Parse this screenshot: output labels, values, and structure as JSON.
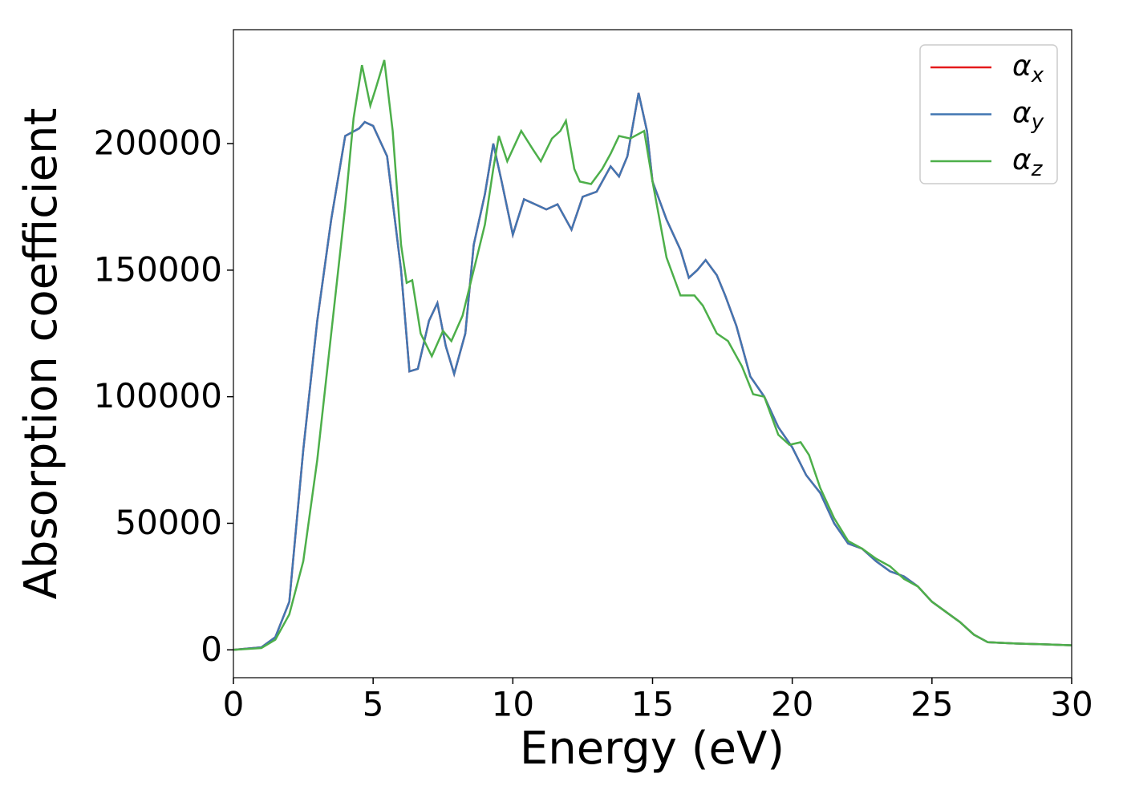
{
  "chart_data": {
    "type": "line",
    "x_label": "Energy (eV)",
    "y_label": "Absorption coefficient",
    "xlim": [
      0,
      30
    ],
    "xticks": [
      0,
      5,
      10,
      15,
      20,
      25,
      30
    ],
    "ylim": [
      -11000,
      245000
    ],
    "yticks": [
      0,
      50000,
      100000,
      150000,
      200000
    ],
    "grid": false,
    "legend": "upper right",
    "series": [
      {
        "name": "αx",
        "color": "#e41a1c",
        "x": [
          0,
          1,
          1.5,
          2,
          2.5,
          3,
          3.5,
          4,
          4.5,
          4.7,
          5,
          5.5,
          6,
          6.3,
          6.6,
          7,
          7.3,
          7.6,
          7.9,
          8.3,
          8.6,
          9,
          9.3,
          9.6,
          10,
          10.4,
          10.8,
          11.2,
          11.6,
          12.1,
          12.5,
          13,
          13.5,
          13.8,
          14.1,
          14.5,
          14.8,
          15,
          15.5,
          16,
          16.3,
          16.6,
          16.9,
          17.3,
          17.6,
          18,
          18.5,
          19,
          19.5,
          20,
          20.5,
          21,
          21.5,
          22,
          22.5,
          23,
          23.5,
          24,
          24.5,
          25,
          25.5,
          26,
          26.5,
          27,
          28,
          29,
          30
        ],
        "values": [
          0,
          1000,
          5000,
          19000,
          79000,
          130000,
          170000,
          203000,
          206000,
          208500,
          207000,
          195000,
          150000,
          110000,
          111000,
          130000,
          137000,
          120000,
          109000,
          125000,
          160000,
          180000,
          200000,
          185000,
          164000,
          178000,
          176000,
          174000,
          176000,
          166000,
          179000,
          181000,
          191000,
          187000,
          195000,
          220000,
          205000,
          185000,
          170000,
          158000,
          147000,
          150000,
          154000,
          148000,
          140000,
          128000,
          108000,
          100000,
          88000,
          80000,
          69000,
          62000,
          50000,
          42000,
          40000,
          35000,
          31000,
          29000,
          25000,
          19000,
          15000,
          11000,
          6000,
          3000,
          2500,
          2200,
          1800
        ]
      },
      {
        "name": "αy",
        "color": "#4176b2",
        "x": [
          0,
          1,
          1.5,
          2,
          2.5,
          3,
          3.5,
          4,
          4.5,
          4.7,
          5,
          5.5,
          6,
          6.3,
          6.6,
          7,
          7.3,
          7.6,
          7.9,
          8.3,
          8.6,
          9,
          9.3,
          9.6,
          10,
          10.4,
          10.8,
          11.2,
          11.6,
          12.1,
          12.5,
          13,
          13.5,
          13.8,
          14.1,
          14.5,
          14.8,
          15,
          15.5,
          16,
          16.3,
          16.6,
          16.9,
          17.3,
          17.6,
          18,
          18.5,
          19,
          19.5,
          20,
          20.5,
          21,
          21.5,
          22,
          22.5,
          23,
          23.5,
          24,
          24.5,
          25,
          25.5,
          26,
          26.5,
          27,
          28,
          29,
          30
        ],
        "values": [
          0,
          1000,
          5000,
          19000,
          79000,
          130000,
          170000,
          203000,
          206000,
          208500,
          207000,
          195000,
          150000,
          110000,
          111000,
          130000,
          137000,
          120000,
          109000,
          125000,
          160000,
          180000,
          200000,
          185000,
          164000,
          178000,
          176000,
          174000,
          176000,
          166000,
          179000,
          181000,
          191000,
          187000,
          195000,
          220000,
          205000,
          185000,
          170000,
          158000,
          147000,
          150000,
          154000,
          148000,
          140000,
          128000,
          108000,
          100000,
          88000,
          80000,
          69000,
          62000,
          50000,
          42000,
          40000,
          35000,
          31000,
          29000,
          25000,
          19000,
          15000,
          11000,
          6000,
          3000,
          2500,
          2200,
          1800
        ]
      },
      {
        "name": "αz",
        "color": "#4daf4a",
        "x": [
          0,
          1,
          1.5,
          2,
          2.5,
          3,
          3.5,
          4,
          4.3,
          4.6,
          4.9,
          5.1,
          5.4,
          5.7,
          6,
          6.2,
          6.4,
          6.7,
          7.1,
          7.5,
          7.8,
          8.2,
          8.6,
          9,
          9.3,
          9.5,
          9.8,
          10.3,
          10.7,
          11,
          11.4,
          11.7,
          11.9,
          12.2,
          12.4,
          12.8,
          13.2,
          13.5,
          13.8,
          14.2,
          14.7,
          15,
          15.5,
          16,
          16.5,
          16.8,
          17.3,
          17.7,
          18.2,
          18.6,
          19,
          19.5,
          19.9,
          20.3,
          20.6,
          21,
          21.5,
          22,
          22.5,
          23,
          23.5,
          24,
          24.5,
          25,
          25.5,
          26,
          26.5,
          27,
          28,
          29,
          30
        ],
        "values": [
          0,
          700,
          4000,
          14000,
          35000,
          75000,
          125000,
          175000,
          210000,
          231000,
          215000,
          222000,
          233000,
          205000,
          160000,
          145000,
          146000,
          125000,
          116000,
          126000,
          122000,
          132000,
          150000,
          168000,
          190000,
          203000,
          193000,
          205000,
          198000,
          193000,
          202000,
          205000,
          209000,
          190000,
          185000,
          184000,
          190000,
          196000,
          203000,
          202000,
          205000,
          185000,
          155000,
          140000,
          140000,
          136000,
          125000,
          122000,
          112000,
          101000,
          100000,
          85000,
          81000,
          82000,
          77000,
          64000,
          52000,
          43000,
          40000,
          36000,
          33000,
          28000,
          25000,
          19000,
          15000,
          11000,
          6000,
          3000,
          2500,
          2200,
          1800
        ]
      }
    ]
  }
}
